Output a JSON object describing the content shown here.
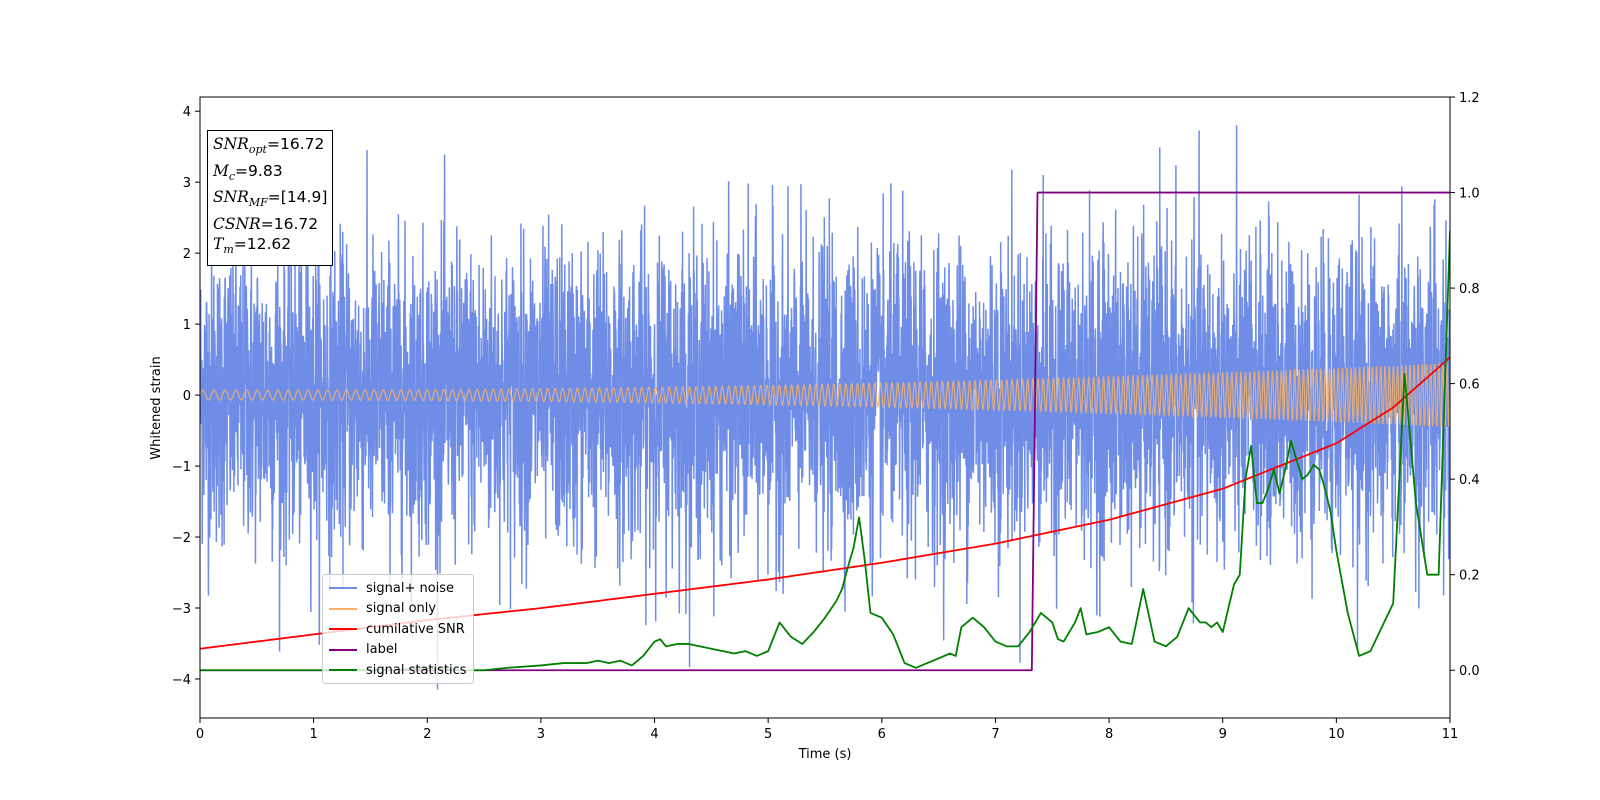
{
  "chart_data": {
    "type": "line",
    "xlabel": "Time (s)",
    "ylabel": "Whitened strain",
    "xlim": [
      0,
      11
    ],
    "ylim": [
      -4.55,
      4.2
    ],
    "y2lim": [
      -0.1,
      1.2
    ],
    "xticks": [
      "0",
      "1",
      "2",
      "3",
      "4",
      "5",
      "6",
      "7",
      "8",
      "9",
      "10",
      "11"
    ],
    "yticks": [
      "−4",
      "−3",
      "−2",
      "−1",
      "0",
      "1",
      "2",
      "3",
      "4"
    ],
    "y2ticks": [
      "0.0",
      "0.2",
      "0.4",
      "0.6",
      "0.8",
      "1.0",
      "1.2"
    ],
    "grid": false,
    "legend_placement": "lower-left",
    "annotation": {
      "snr_opt": "16.72",
      "mc": "9.83",
      "snr_mf": "[14.9]",
      "csnr": "16.72",
      "tm": "12.62"
    },
    "series": [
      {
        "name": "signal+ noise",
        "axis": "left",
        "color": "#6f8de6",
        "description_range": [
          -4.15,
          3.8
        ]
      },
      {
        "name": "signal only",
        "axis": "left",
        "color": "#f5b26b",
        "amplitude_start": 0.07,
        "amplitude_end": 0.45,
        "frequency_start_hz": 10,
        "frequency_end_hz": 28
      },
      {
        "name": "cumilative SNR",
        "axis": "right",
        "color": "#ff0000",
        "x": [
          0,
          1,
          2,
          3,
          4,
          5,
          6,
          7,
          8,
          9,
          10,
          10.5,
          11
        ],
        "values": [
          0.045,
          0.075,
          0.105,
          0.13,
          0.16,
          0.19,
          0.225,
          0.265,
          0.315,
          0.38,
          0.475,
          0.55,
          0.655
        ]
      },
      {
        "name": "label",
        "axis": "right",
        "color": "#800080",
        "x": [
          0,
          7.32,
          7.37,
          11
        ],
        "values": [
          0.0,
          0.0,
          1.0,
          1.0
        ]
      },
      {
        "name": "signal statistics",
        "axis": "right",
        "color": "#008000",
        "x": [
          0,
          0.3,
          1.0,
          1.7,
          2.0,
          2.3,
          2.5,
          2.7,
          3.0,
          3.2,
          3.4,
          3.5,
          3.6,
          3.7,
          3.8,
          3.9,
          4.0,
          4.05,
          4.1,
          4.2,
          4.3,
          4.4,
          4.5,
          4.6,
          4.7,
          4.8,
          4.9,
          5.0,
          5.1,
          5.2,
          5.3,
          5.4,
          5.5,
          5.6,
          5.65,
          5.7,
          5.75,
          5.8,
          5.85,
          5.9,
          6.0,
          6.1,
          6.2,
          6.3,
          6.4,
          6.5,
          6.6,
          6.65,
          6.7,
          6.75,
          6.8,
          6.9,
          7.0,
          7.1,
          7.2,
          7.3,
          7.4,
          7.5,
          7.55,
          7.6,
          7.7,
          7.75,
          7.8,
          7.9,
          8.0,
          8.1,
          8.2,
          8.3,
          8.4,
          8.5,
          8.6,
          8.7,
          8.8,
          8.85,
          8.9,
          8.95,
          9.0,
          9.1,
          9.15,
          9.2,
          9.25,
          9.3,
          9.35,
          9.4,
          9.45,
          9.5,
          9.55,
          9.6,
          9.65,
          9.7,
          9.75,
          9.8,
          9.85,
          9.9,
          9.95,
          10.0,
          10.1,
          10.2,
          10.3,
          10.4,
          10.5,
          10.55,
          10.6,
          10.7,
          10.8,
          10.9,
          11.0
        ],
        "values": [
          0.0,
          0.0,
          0.0,
          0.0,
          0.005,
          0.0,
          0.0,
          0.005,
          0.01,
          0.015,
          0.015,
          0.02,
          0.015,
          0.02,
          0.01,
          0.03,
          0.06,
          0.065,
          0.05,
          0.055,
          0.055,
          0.05,
          0.045,
          0.04,
          0.035,
          0.04,
          0.03,
          0.04,
          0.1,
          0.07,
          0.055,
          0.08,
          0.11,
          0.145,
          0.17,
          0.215,
          0.255,
          0.32,
          0.23,
          0.12,
          0.11,
          0.075,
          0.015,
          0.005,
          0.015,
          0.025,
          0.035,
          0.03,
          0.09,
          0.1,
          0.11,
          0.09,
          0.06,
          0.05,
          0.05,
          0.08,
          0.12,
          0.1,
          0.065,
          0.06,
          0.1,
          0.13,
          0.075,
          0.08,
          0.09,
          0.06,
          0.055,
          0.17,
          0.06,
          0.05,
          0.07,
          0.13,
          0.1,
          0.1,
          0.09,
          0.1,
          0.08,
          0.18,
          0.2,
          0.4,
          0.47,
          0.35,
          0.35,
          0.38,
          0.42,
          0.37,
          0.42,
          0.48,
          0.44,
          0.4,
          0.41,
          0.43,
          0.42,
          0.38,
          0.33,
          0.25,
          0.12,
          0.03,
          0.04,
          0.09,
          0.14,
          0.38,
          0.62,
          0.35,
          0.2,
          0.2,
          0.92
        ]
      }
    ]
  }
}
